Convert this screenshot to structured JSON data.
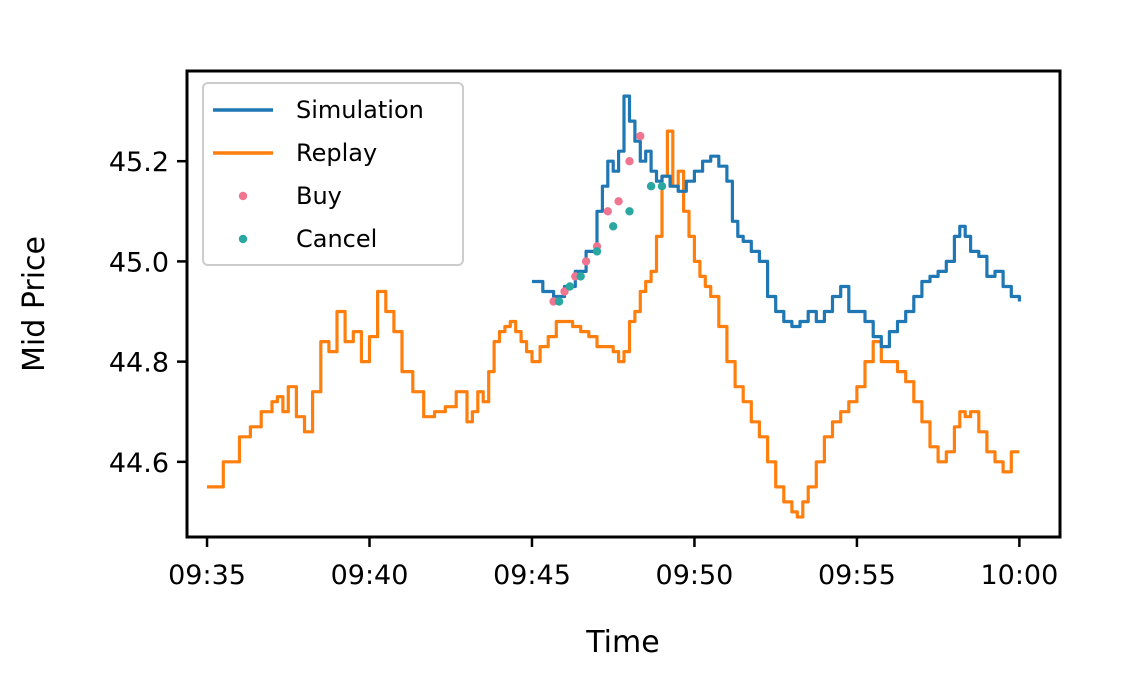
{
  "chart_data": {
    "type": "line",
    "title": "",
    "xlabel": "Time",
    "ylabel": "Mid Price",
    "xlim": [
      "09:34:23",
      "10:01:15"
    ],
    "ylim": [
      44.45,
      45.38
    ],
    "x_ticks": [
      "09:35",
      "09:40",
      "09:45",
      "09:50",
      "09:55",
      "10:00"
    ],
    "y_ticks": [
      44.6,
      44.8,
      45.0,
      45.2
    ],
    "y_tick_labels": [
      "44.6",
      "44.8",
      "45.0",
      "45.2"
    ],
    "grid": false,
    "legend_position": "upper-left",
    "legend": [
      {
        "label": "Simulation",
        "kind": "line",
        "color": "#1f77b4"
      },
      {
        "label": "Replay",
        "kind": "line",
        "color": "#ff7f0e"
      },
      {
        "label": "Buy",
        "kind": "marker",
        "color": "#f07590"
      },
      {
        "label": "Cancel",
        "kind": "marker",
        "color": "#2aa7a0"
      }
    ],
    "series": [
      {
        "name": "Replay",
        "type": "line",
        "color": "#ff7f0e",
        "x": [
          "09:35:00",
          "09:35:30",
          "09:36:00",
          "09:36:20",
          "09:36:40",
          "09:37:00",
          "09:37:10",
          "09:37:20",
          "09:37:30",
          "09:37:45",
          "09:38:00",
          "09:38:15",
          "09:38:30",
          "09:38:45",
          "09:39:00",
          "09:39:15",
          "09:39:30",
          "09:39:45",
          "09:40:00",
          "09:40:15",
          "09:40:30",
          "09:40:45",
          "09:41:00",
          "09:41:20",
          "09:41:40",
          "09:42:00",
          "09:42:20",
          "09:42:40",
          "09:43:00",
          "09:43:10",
          "09:43:20",
          "09:43:30",
          "09:43:40",
          "09:43:50",
          "09:44:00",
          "09:44:10",
          "09:44:20",
          "09:44:30",
          "09:44:40",
          "09:44:50",
          "09:45:00",
          "09:45:15",
          "09:45:30",
          "09:45:45",
          "09:46:00",
          "09:46:15",
          "09:46:30",
          "09:46:45",
          "09:47:00",
          "09:47:15",
          "09:47:30",
          "09:47:40",
          "09:47:50",
          "09:48:00",
          "09:48:10",
          "09:48:20",
          "09:48:30",
          "09:48:40",
          "09:48:50",
          "09:49:00",
          "09:49:10",
          "09:49:20",
          "09:49:30",
          "09:49:40",
          "09:49:50",
          "09:50:00",
          "09:50:10",
          "09:50:20",
          "09:50:30",
          "09:50:45",
          "09:51:00",
          "09:51:15",
          "09:51:30",
          "09:51:45",
          "09:52:00",
          "09:52:15",
          "09:52:30",
          "09:52:45",
          "09:53:00",
          "09:53:10",
          "09:53:20",
          "09:53:30",
          "09:53:45",
          "09:54:00",
          "09:54:15",
          "09:54:30",
          "09:54:45",
          "09:55:00",
          "09:55:15",
          "09:55:30",
          "09:55:45",
          "09:56:00",
          "09:56:15",
          "09:56:30",
          "09:56:45",
          "09:57:00",
          "09:57:15",
          "09:57:30",
          "09:57:45",
          "09:58:00",
          "09:58:10",
          "09:58:20",
          "09:58:30",
          "09:58:45",
          "09:59:00",
          "09:59:15",
          "09:59:30",
          "09:59:45",
          "10:00:00"
        ],
        "y": [
          44.55,
          44.6,
          44.65,
          44.67,
          44.7,
          44.72,
          44.73,
          44.7,
          44.75,
          44.69,
          44.66,
          44.74,
          44.84,
          44.82,
          44.9,
          44.84,
          44.86,
          44.8,
          44.85,
          44.94,
          44.9,
          44.86,
          44.78,
          44.74,
          44.69,
          44.7,
          44.71,
          44.74,
          44.68,
          44.7,
          44.74,
          44.72,
          44.78,
          44.84,
          44.86,
          44.87,
          44.88,
          44.86,
          44.84,
          44.82,
          44.8,
          44.83,
          44.85,
          44.88,
          44.88,
          44.87,
          44.86,
          44.85,
          44.83,
          44.83,
          44.82,
          44.8,
          44.82,
          44.88,
          44.9,
          44.94,
          44.96,
          44.98,
          45.05,
          45.17,
          45.26,
          45.15,
          45.18,
          45.1,
          45.05,
          45.0,
          44.97,
          44.95,
          44.93,
          44.87,
          44.8,
          44.75,
          44.72,
          44.68,
          44.65,
          44.6,
          44.55,
          44.52,
          44.5,
          44.49,
          44.52,
          44.55,
          44.6,
          44.65,
          44.68,
          44.7,
          44.72,
          44.75,
          44.8,
          44.84,
          44.8,
          44.8,
          44.78,
          44.76,
          44.72,
          44.68,
          44.63,
          44.6,
          44.62,
          44.67,
          44.7,
          44.69,
          44.7,
          44.66,
          44.62,
          44.6,
          44.58,
          44.62,
          44.62
        ],
        "note_values_override": true
      },
      {
        "name": "Simulation",
        "type": "line",
        "color": "#1f77b4",
        "x": [
          "09:45:00",
          "09:45:20",
          "09:45:40",
          "09:46:00",
          "09:46:20",
          "09:46:40",
          "09:47:00",
          "09:47:10",
          "09:47:20",
          "09:47:30",
          "09:47:40",
          "09:47:50",
          "09:48:00",
          "09:48:10",
          "09:48:20",
          "09:48:30",
          "09:48:40",
          "09:48:50",
          "09:49:00",
          "09:49:15",
          "09:49:30",
          "09:49:45",
          "09:50:00",
          "09:50:15",
          "09:50:30",
          "09:50:45",
          "09:51:00",
          "09:51:10",
          "09:51:20",
          "09:51:30",
          "09:51:45",
          "09:52:00",
          "09:52:15",
          "09:52:30",
          "09:52:45",
          "09:53:00",
          "09:53:15",
          "09:53:30",
          "09:53:45",
          "09:54:00",
          "09:54:15",
          "09:54:30",
          "09:54:45",
          "09:55:00",
          "09:55:15",
          "09:55:30",
          "09:55:45",
          "09:56:00",
          "09:56:15",
          "09:56:30",
          "09:56:45",
          "09:57:00",
          "09:57:15",
          "09:57:30",
          "09:57:45",
          "09:58:00",
          "09:58:10",
          "09:58:20",
          "09:58:30",
          "09:58:45",
          "09:59:00",
          "09:59:15",
          "09:59:30",
          "09:59:45",
          "10:00:00"
        ],
        "y": [
          44.96,
          44.94,
          44.93,
          44.95,
          44.98,
          45.02,
          45.1,
          45.15,
          45.2,
          45.18,
          45.22,
          45.33,
          45.28,
          45.24,
          45.2,
          45.22,
          45.18,
          45.16,
          45.17,
          45.15,
          45.14,
          45.16,
          45.18,
          45.2,
          45.21,
          45.19,
          45.16,
          45.08,
          45.05,
          45.04,
          45.02,
          45.0,
          44.93,
          44.9,
          44.88,
          44.87,
          44.88,
          44.9,
          44.88,
          44.9,
          44.93,
          44.95,
          44.9,
          44.9,
          44.88,
          44.85,
          44.83,
          44.86,
          44.88,
          44.9,
          44.93,
          44.96,
          44.97,
          44.98,
          45.0,
          45.05,
          45.07,
          45.05,
          45.02,
          45.01,
          44.97,
          44.98,
          44.95,
          44.93,
          44.92
        ]
      }
    ],
    "buy_points": {
      "name": "Buy",
      "color": "#f07590",
      "x": [
        "09:45:40",
        "09:46:00",
        "09:46:20",
        "09:46:40",
        "09:47:00",
        "09:47:20",
        "09:47:40",
        "09:48:00",
        "09:48:20",
        "09:48:40"
      ],
      "y": [
        44.92,
        44.94,
        44.97,
        45.0,
        45.03,
        45.1,
        45.12,
        45.2,
        45.25,
        45.15
      ]
    },
    "cancel_points": {
      "name": "Cancel",
      "color": "#2aa7a0",
      "x": [
        "09:45:50",
        "09:46:10",
        "09:46:30",
        "09:47:00",
        "09:47:30",
        "09:48:00",
        "09:48:40",
        "09:49:00"
      ],
      "y": [
        44.92,
        44.95,
        44.97,
        45.02,
        45.07,
        45.1,
        45.15,
        45.15
      ]
    }
  }
}
